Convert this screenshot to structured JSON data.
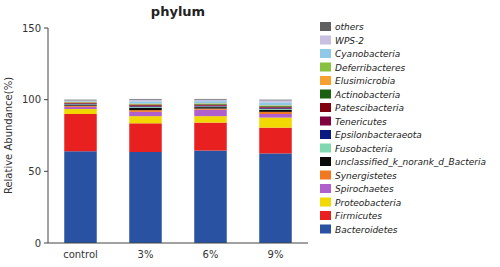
{
  "chart_data": {
    "type": "bar",
    "stacked": true,
    "title": "phylum",
    "ylabel": "Relative Abundance(%)",
    "categories": [
      "control",
      "3%",
      "6%",
      "9%"
    ],
    "series": [
      {
        "name": "Bacteroidetes",
        "color": "#2952a3",
        "values": [
          64.0,
          63.5,
          64.5,
          62.5
        ]
      },
      {
        "name": "Firmicutes",
        "color": "#e82020",
        "values": [
          26.0,
          20.0,
          19.5,
          18.0
        ]
      },
      {
        "name": "Proteobacteria",
        "color": "#f0d800",
        "values": [
          3.5,
          5.0,
          4.5,
          7.0
        ]
      },
      {
        "name": "Spirochaetes",
        "color": "#b060cc",
        "values": [
          1.5,
          3.0,
          4.5,
          2.5
        ]
      },
      {
        "name": "Synergistetes",
        "color": "#f07820",
        "values": [
          0.8,
          1.2,
          0.8,
          1.5
        ]
      },
      {
        "name": "unclassified_k_norank_d_Bacteria",
        "color": "#0a0a0a",
        "values": [
          0.5,
          1.5,
          1.0,
          1.5
        ]
      },
      {
        "name": "Fusobacteria",
        "color": "#80d8b0",
        "values": [
          0.4,
          0.6,
          0.4,
          0.5
        ]
      },
      {
        "name": "Epsilonbacteraeota",
        "color": "#0a1a80",
        "values": [
          0.3,
          0.5,
          0.3,
          0.5
        ]
      },
      {
        "name": "Tenericutes",
        "color": "#800040",
        "values": [
          0.3,
          0.5,
          0.5,
          0.5
        ]
      },
      {
        "name": "Patescibacteria",
        "color": "#800010",
        "values": [
          0.4,
          0.5,
          0.5,
          0.5
        ]
      },
      {
        "name": "Actinobacteria",
        "color": "#1a6010",
        "values": [
          0.3,
          0.4,
          0.4,
          0.5
        ]
      },
      {
        "name": "Elusimicrobia",
        "color": "#f5a030",
        "values": [
          0.3,
          0.3,
          0.3,
          0.3
        ]
      },
      {
        "name": "Deferribacteres",
        "color": "#88c040",
        "values": [
          0.2,
          0.3,
          0.3,
          0.3
        ]
      },
      {
        "name": "Cyanobacteria",
        "color": "#90c8e8",
        "values": [
          0.5,
          1.5,
          1.5,
          2.0
        ]
      },
      {
        "name": "WPS-2",
        "color": "#c8c0e0",
        "values": [
          0.5,
          1.2,
          1.0,
          1.4
        ]
      },
      {
        "name": "others",
        "color": "#606060",
        "values": [
          0.5,
          0.5,
          0.5,
          0.5
        ]
      }
    ],
    "ylim": [
      0,
      150
    ],
    "yticks": [
      0,
      50,
      100,
      150
    ],
    "grid": false,
    "legend": "right"
  }
}
